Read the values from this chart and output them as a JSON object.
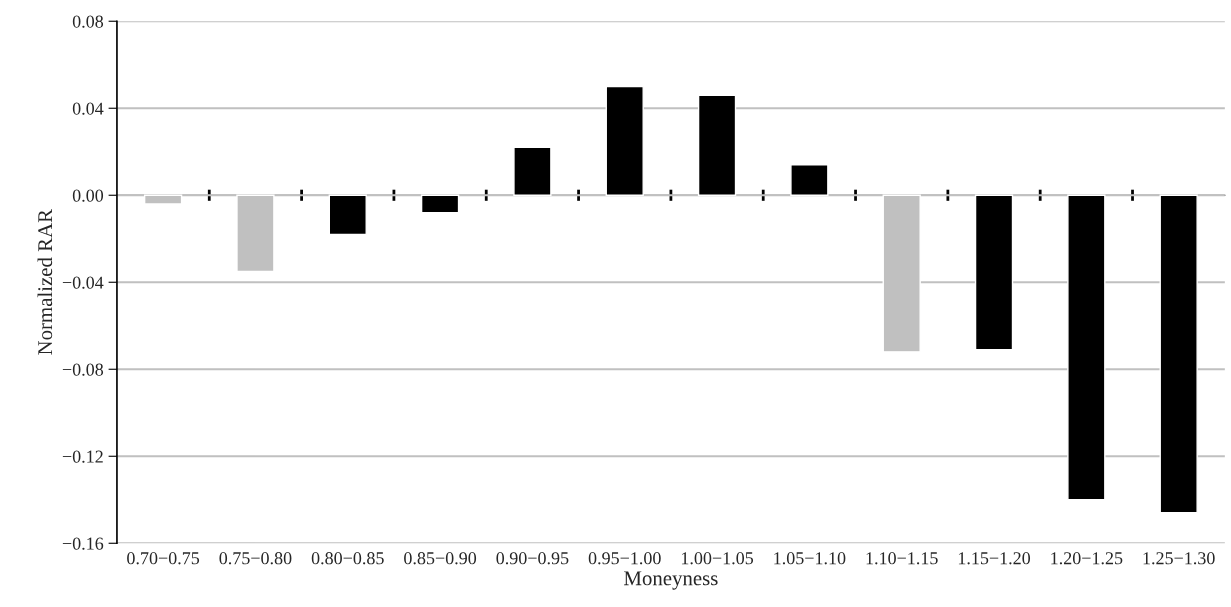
{
  "chart_data": {
    "type": "bar",
    "xlabel": "Moneyness",
    "ylabel": "Normalized RAR",
    "categories": [
      "0.70−0.75",
      "0.75−0.80",
      "0.80−0.85",
      "0.85−0.90",
      "0.90−0.95",
      "0.95−1.00",
      "1.00−1.05",
      "1.05−1.10",
      "1.10−1.15",
      "1.15−1.20",
      "1.20−1.25",
      "1.25−1.30"
    ],
    "values": [
      -0.004,
      -0.035,
      -0.018,
      -0.008,
      0.022,
      0.05,
      0.046,
      0.014,
      -0.072,
      -0.071,
      -0.14,
      -0.146
    ],
    "colors": [
      "#c0c0c0",
      "#c0c0c0",
      "#000000",
      "#000000",
      "#000000",
      "#000000",
      "#000000",
      "#000000",
      "#c0c0c0",
      "#000000",
      "#000000",
      "#000000"
    ],
    "ylim": [
      -0.16,
      0.08
    ],
    "yticks": [
      {
        "value": -0.16,
        "label": "−0.16"
      },
      {
        "value": -0.12,
        "label": "−0.12"
      },
      {
        "value": -0.08,
        "label": "−0.08"
      },
      {
        "value": -0.04,
        "label": "−0.04"
      },
      {
        "value": 0,
        "label": "0.00"
      },
      {
        "value": 0.04,
        "label": "0.04"
      },
      {
        "value": 0.08,
        "label": "0.08"
      }
    ],
    "grid": "y",
    "legend": false
  }
}
